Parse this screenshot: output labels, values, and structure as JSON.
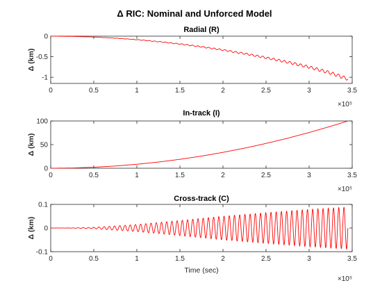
{
  "figure": {
    "title": "Δ RIC: Nominal and Unforced Model"
  },
  "chart_data": [
    {
      "type": "line",
      "title": "Radial (R)",
      "xlabel": "",
      "ylabel": "Δ (km)",
      "xlim": [
        0,
        350000
      ],
      "ylim": [
        -1.15,
        0
      ],
      "xticks": [
        0,
        50000,
        100000,
        150000,
        200000,
        250000,
        300000,
        350000
      ],
      "xtick_labels": [
        "0",
        "0.5",
        "1",
        "1.5",
        "2",
        "2.5",
        "3",
        "3.5"
      ],
      "yticks": [
        0,
        -0.5,
        -1
      ],
      "ytick_labels": [
        "0",
        "-0.5",
        "-1"
      ],
      "x_multiplier": "×10⁵",
      "line_color": "#ff0000",
      "grid": false,
      "series": [
        {
          "x": [
            0,
            25000,
            50000,
            75000,
            100000,
            125000,
            150000,
            175000,
            200000,
            225000,
            250000,
            275000,
            300000,
            325000,
            345000
          ],
          "y": [
            0,
            -0.005,
            -0.02,
            -0.045,
            -0.08,
            -0.125,
            -0.18,
            -0.245,
            -0.32,
            -0.405,
            -0.5,
            -0.605,
            -0.72,
            -0.86,
            -1.0
          ],
          "oscillation_amplitude_at_end": 0.08,
          "oscillation_cycles": 55
        }
      ]
    },
    {
      "type": "line",
      "title": "In-track (I)",
      "xlabel": "",
      "ylabel": "Δ (km)",
      "xlim": [
        0,
        350000
      ],
      "ylim": [
        0,
        100
      ],
      "xticks": [
        0,
        50000,
        100000,
        150000,
        200000,
        250000,
        300000,
        350000
      ],
      "xtick_labels": [
        "0",
        "0.5",
        "1",
        "1.5",
        "2",
        "2.5",
        "3",
        "3.5"
      ],
      "yticks": [
        0,
        50,
        100
      ],
      "ytick_labels": [
        "0",
        "50",
        "100"
      ],
      "x_multiplier": "×10⁵",
      "line_color": "#ff0000",
      "grid": false,
      "series": [
        {
          "x": [
            0,
            25000,
            50000,
            75000,
            100000,
            125000,
            150000,
            175000,
            200000,
            225000,
            250000,
            275000,
            300000,
            325000,
            345000
          ],
          "y": [
            0,
            0.5,
            2.1,
            4.7,
            8.4,
            13.1,
            18.9,
            25.7,
            33.6,
            42.5,
            52.5,
            63.5,
            75.6,
            88.7,
            100
          ]
        }
      ]
    },
    {
      "type": "line",
      "title": "Cross-track (C)",
      "xlabel": "Time (sec)",
      "ylabel": "Δ (km)",
      "xlim": [
        0,
        350000
      ],
      "ylim": [
        -0.1,
        0.1
      ],
      "xticks": [
        0,
        50000,
        100000,
        150000,
        200000,
        250000,
        300000,
        350000
      ],
      "xtick_labels": [
        "0",
        "0.5",
        "1",
        "1.5",
        "2",
        "2.5",
        "3",
        "3.5"
      ],
      "yticks": [
        0.1,
        0,
        -0.1
      ],
      "ytick_labels": [
        "0.1",
        "0",
        "-0.1"
      ],
      "x_multiplier": "×10⁵",
      "line_color": "#ff0000",
      "grid": false,
      "series": [
        {
          "x": [
            0,
            25000,
            50000,
            100000,
            150000,
            200000,
            250000,
            300000,
            345000
          ],
          "amplitude": [
            0,
            0.0005,
            0.003,
            0.015,
            0.032,
            0.05,
            0.065,
            0.079,
            0.089
          ],
          "oscillation_cycles": 57
        }
      ]
    }
  ]
}
